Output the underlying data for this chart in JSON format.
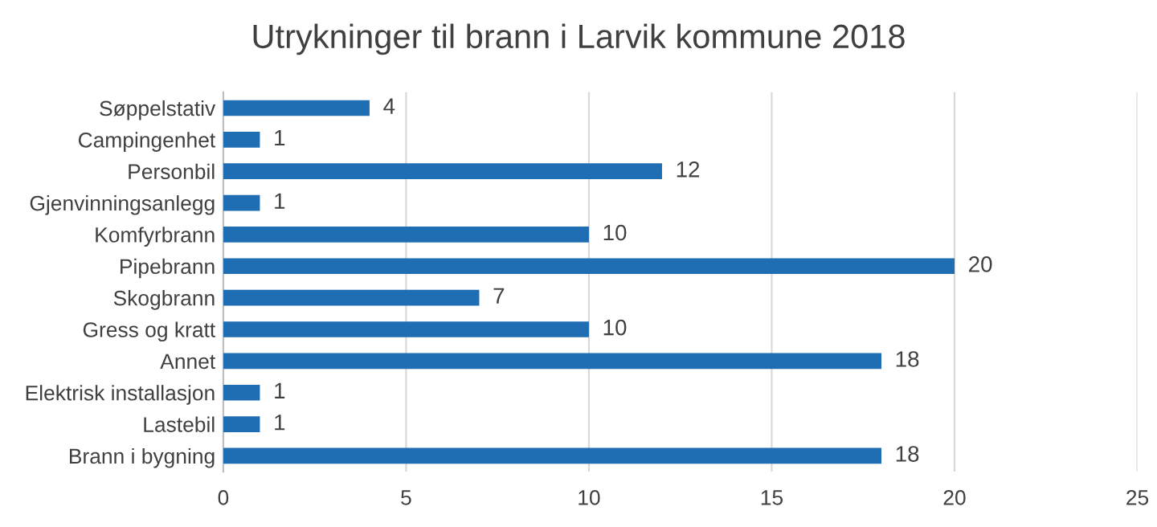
{
  "chart_data": {
    "type": "bar",
    "orientation": "horizontal",
    "title": "Utrykninger til brann i Larvik kommune 2018",
    "categories": [
      "Søppelstativ",
      "Campingenhet",
      "Personbil",
      "Gjenvinningsanlegg",
      "Komfyrbrann",
      "Pipebrann",
      "Skogbrann",
      "Gress og kratt",
      "Annet",
      "Elektrisk installasjon",
      "Lastebil",
      "Brann i bygning"
    ],
    "values": [
      4,
      1,
      12,
      1,
      10,
      20,
      7,
      10,
      18,
      1,
      1,
      18
    ],
    "color": "#1f6db3",
    "xlim": [
      0,
      25
    ],
    "xticks": [
      0,
      5,
      10,
      15,
      20,
      25
    ],
    "grid": "x",
    "data_labels": true
  }
}
